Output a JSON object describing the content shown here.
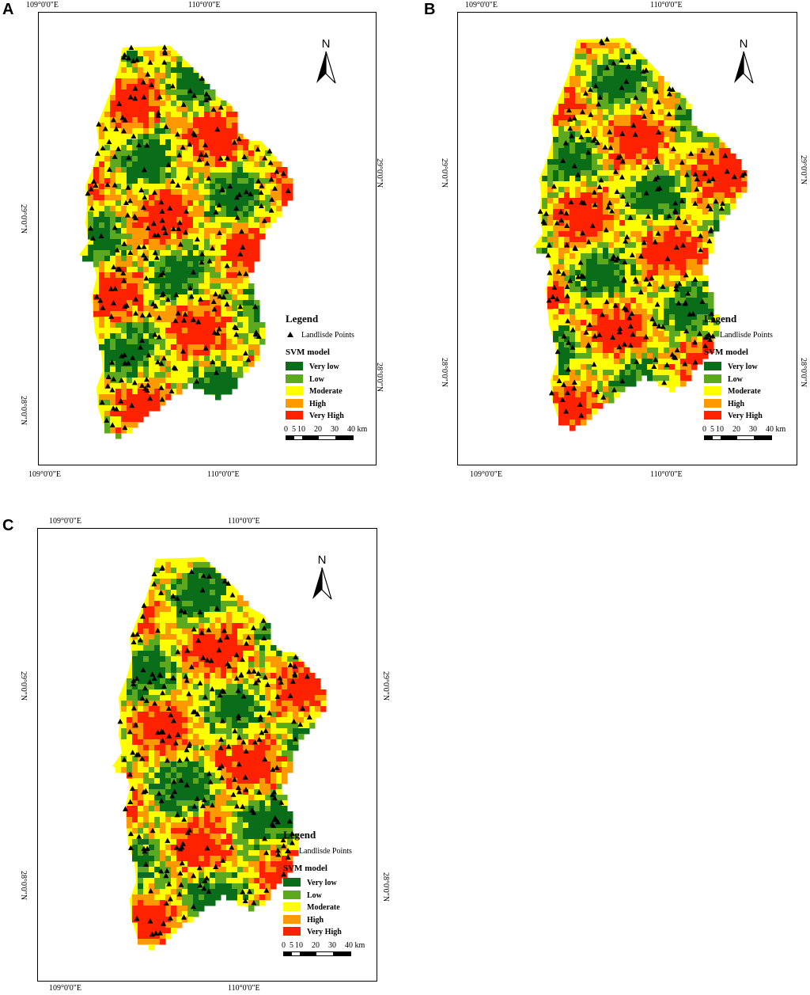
{
  "panels": [
    {
      "letter": "A",
      "lon_labels": [
        "109°0'0\"E",
        "110°0'0\"E"
      ],
      "lat_labels": [
        "29°0'0\"N",
        "28°0'0\"N"
      ],
      "north_label": "N",
      "legend": {
        "title": "Legend",
        "points_label": "Landlisde Points",
        "model_label": "SVM model",
        "classes": [
          "Very low",
          "Low",
          "Moderate",
          "High",
          "Very High"
        ]
      },
      "scale": {
        "ticks": [
          "0",
          "5",
          "10",
          "20",
          "30",
          "40 km"
        ]
      }
    },
    {
      "letter": "B",
      "lon_labels": [
        "109°0'0\"E",
        "110°0'0\"E"
      ],
      "lat_labels": [
        "29°0'0\"N",
        "28°0'0\"N"
      ],
      "north_label": "N",
      "legend": {
        "title": "Legend",
        "points_label": "Landlisde Points",
        "model_label": "SVM model",
        "classes": [
          "Very low",
          "Low",
          "Moderate",
          "High",
          "Very High"
        ]
      },
      "scale": {
        "ticks": [
          "0",
          "5",
          "10",
          "20",
          "30",
          "40 km"
        ]
      }
    },
    {
      "letter": "C",
      "lon_labels": [
        "109°0'0\"E",
        "110°0'0\"E"
      ],
      "lat_labels": [
        "29°0'0\"N",
        "28°0'0\"N"
      ],
      "north_label": "N",
      "legend": {
        "title": "Legend",
        "points_label": "Landlisde Points",
        "model_label": "SVM model",
        "classes": [
          "Very low",
          "Low",
          "Moderate",
          "High",
          "Very High"
        ]
      },
      "scale": {
        "ticks": [
          "0",
          "5",
          "10",
          "20",
          "30",
          "40 km"
        ]
      }
    }
  ],
  "class_colors": {
    "Very low": "#0a6d1a",
    "Low": "#5ca81e",
    "Moderate": "#ffff00",
    "High": "#ff9900",
    "Very High": "#ff2200"
  },
  "point_symbol": "triangle-icon"
}
